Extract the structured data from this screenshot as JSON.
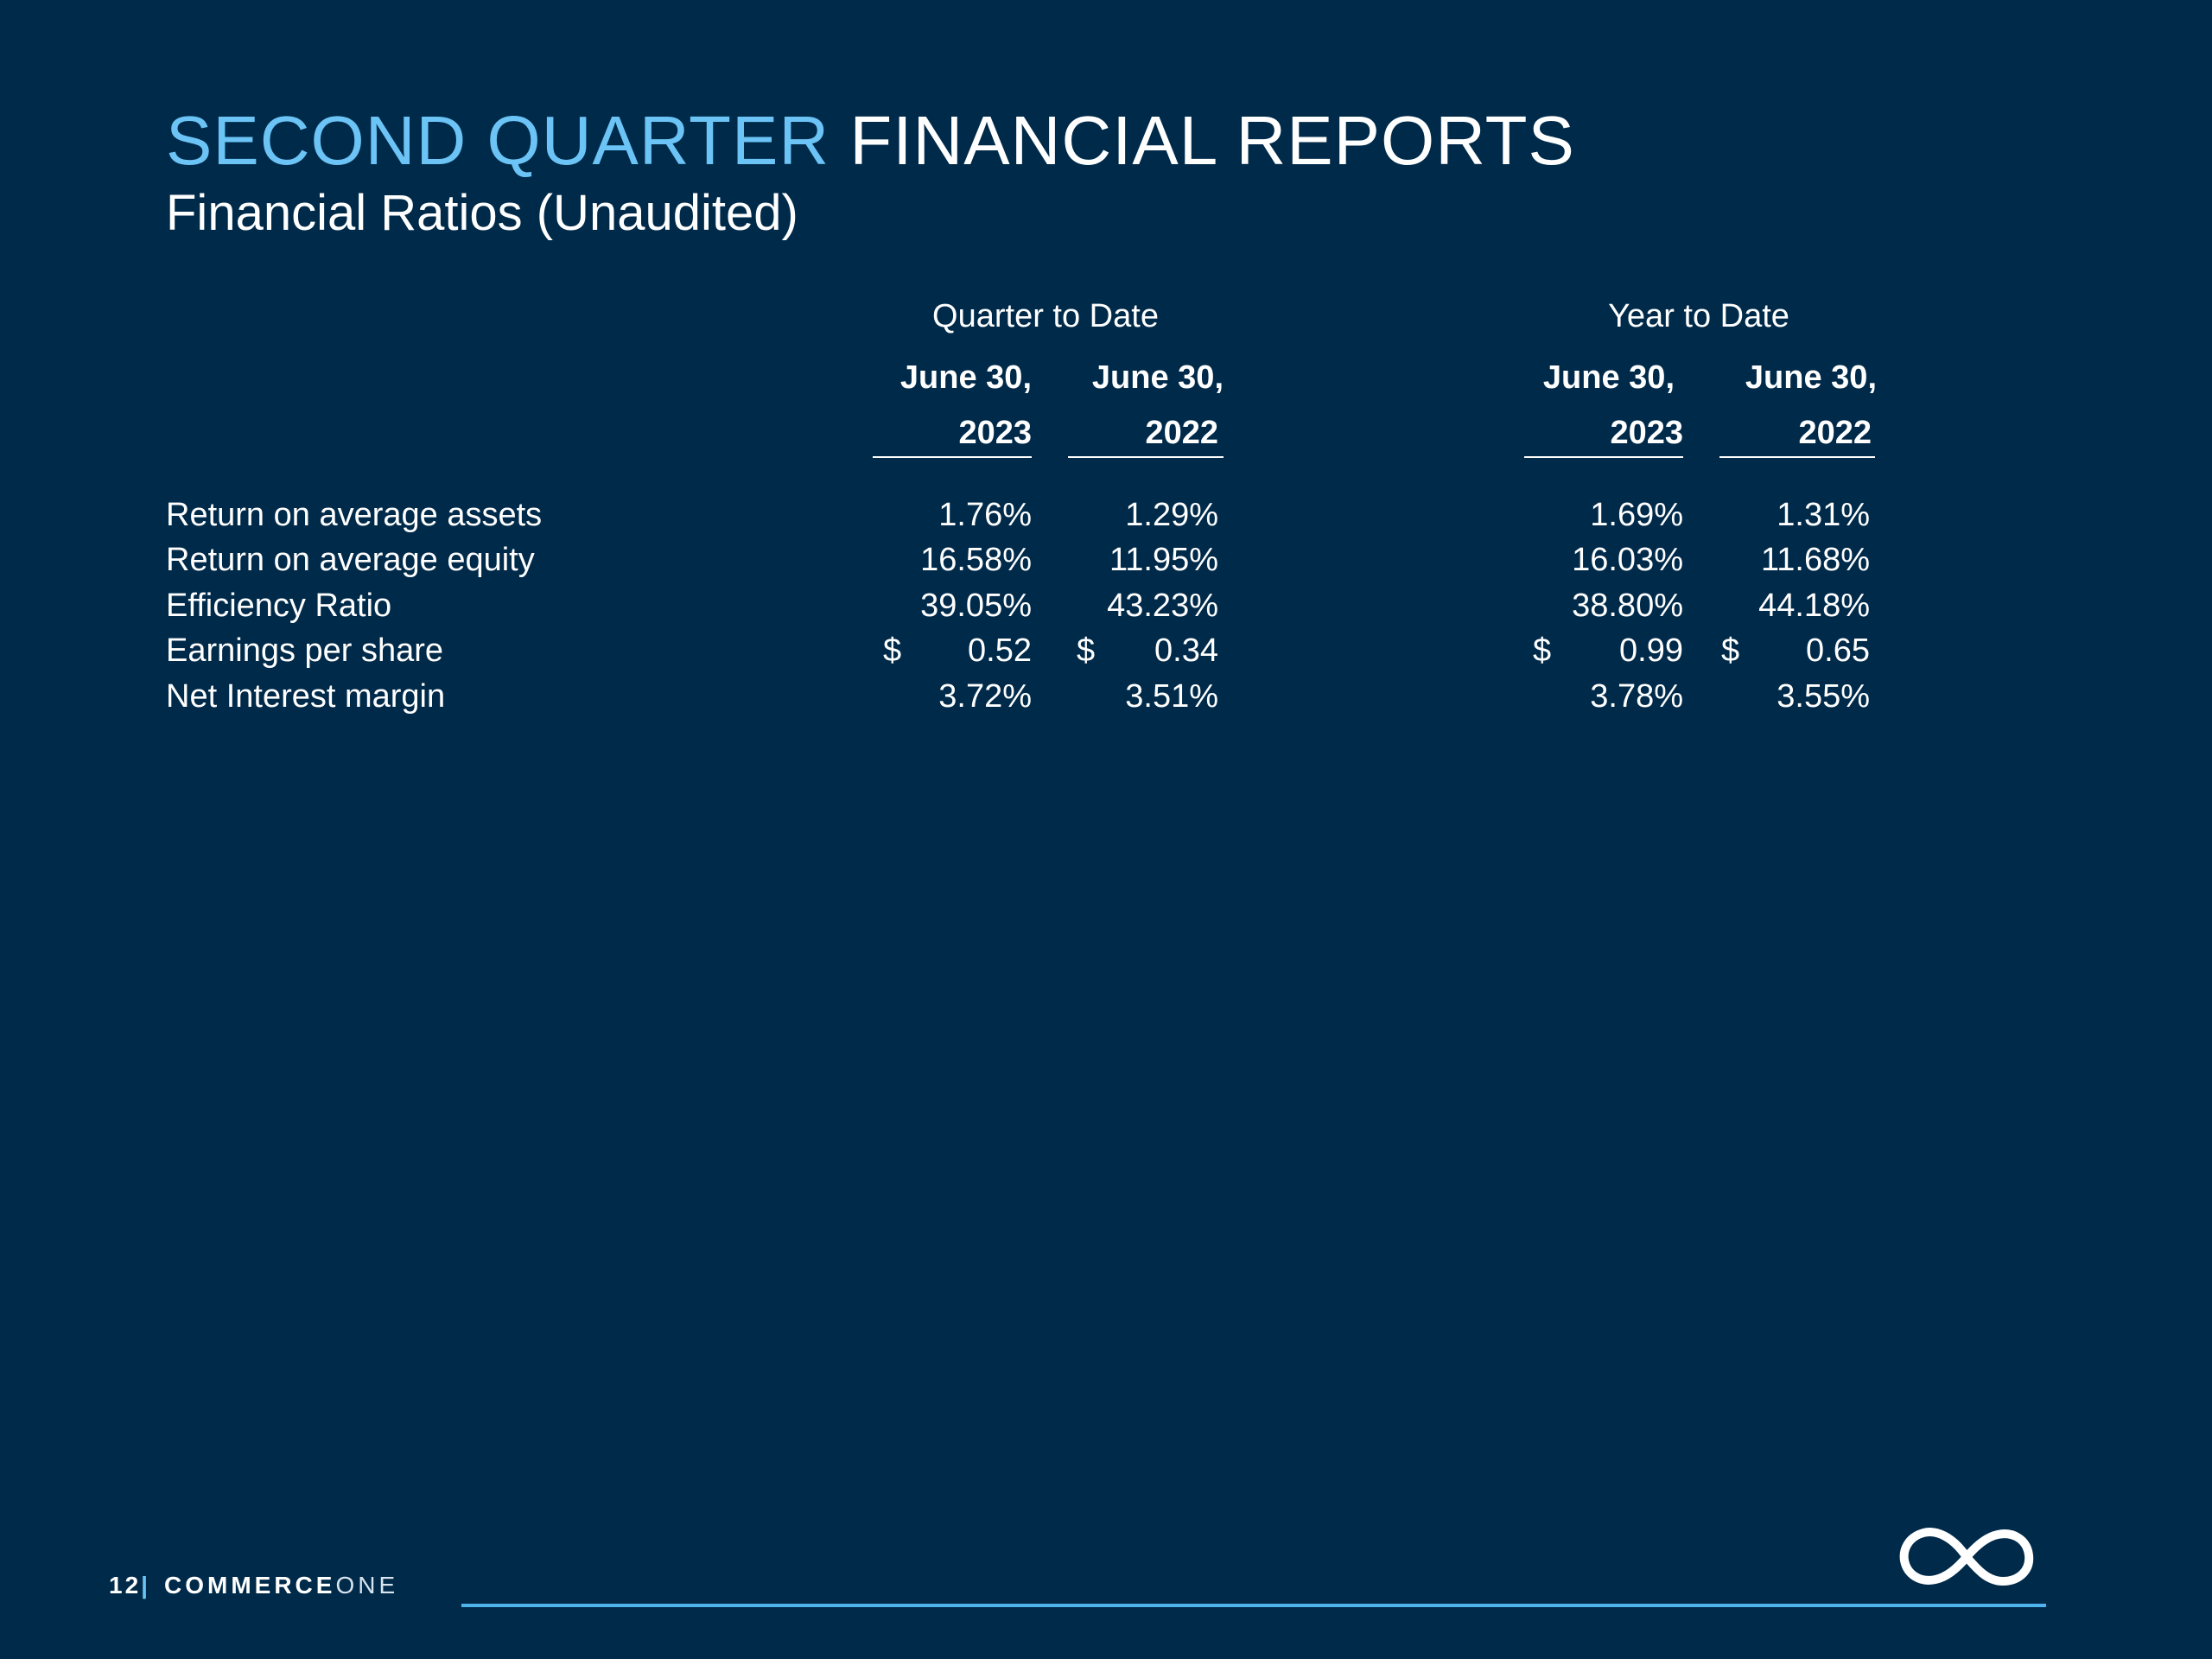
{
  "title": {
    "accent": "SECOND QUARTER",
    "rest": "FINANCIAL REPORTS"
  },
  "subtitle": "Financial Ratios (Unaudited)",
  "table": {
    "groups": [
      "Quarter to Date",
      "Year to Date"
    ],
    "columns": [
      {
        "line1": "June 30,",
        "line2": "2023"
      },
      {
        "line1": "June 30,",
        "line2": "2022"
      },
      {
        "line1": "June 30,",
        "line2": "2023"
      },
      {
        "line1": "June 30,",
        "line2": "2022"
      }
    ],
    "rows": [
      {
        "label": "Return on average assets",
        "values": [
          "1.76%",
          "1.29%",
          "1.69%",
          "1.31%"
        ]
      },
      {
        "label": "Return on average equity",
        "values": [
          "16.58%",
          "11.95%",
          "16.03%",
          "11.68%"
        ]
      },
      {
        "label": "Efficiency Ratio",
        "values": [
          "39.05%",
          "43.23%",
          "38.80%",
          "44.18%"
        ]
      },
      {
        "label": "Earnings per share",
        "values": [
          "0.52",
          "0.34",
          "0.99",
          "0.65"
        ],
        "currency": "$"
      },
      {
        "label": "Net Interest margin",
        "values": [
          "3.72%",
          "3.51%",
          "3.78%",
          "3.55%"
        ]
      }
    ]
  },
  "footer": {
    "page_number": "12",
    "separator": "|",
    "brand_bold": "COMMERCE",
    "brand_light": "ONE"
  },
  "logo_icon": "infinity-icon",
  "colors": {
    "background": "#002a4a",
    "accent": "#6bc4f5",
    "footer_line": "#4fb3ee"
  }
}
